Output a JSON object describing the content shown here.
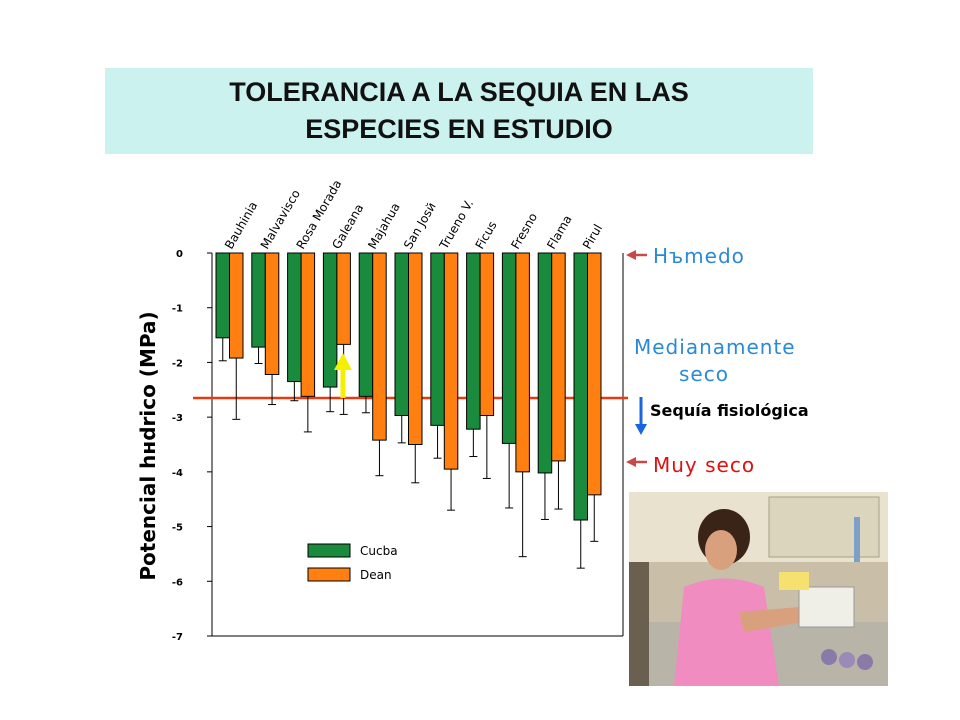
{
  "title": {
    "line1": "TOLERANCIA A LA SEQUIA EN LAS",
    "line2": "ESPECIES EN ESTUDIO"
  },
  "chart_data": {
    "type": "bar",
    "categories": [
      "Bauhinia",
      "Malvavisco",
      "Rosa Morada",
      "Galeana",
      "Majahua",
      "San Josй",
      "Trueno V.",
      "Ficus",
      "Fresno",
      "Flama",
      "Pirul"
    ],
    "series": [
      {
        "name": "Cucba",
        "color": "#1a8a3c",
        "values": [
          -1.55,
          -1.72,
          -2.35,
          -2.45,
          -2.62,
          -2.97,
          -3.15,
          -3.22,
          -3.48,
          -4.02,
          -4.88
        ],
        "errors": [
          0.42,
          0.3,
          0.35,
          0.45,
          0.3,
          0.5,
          0.6,
          0.5,
          1.18,
          0.85,
          0.88
        ]
      },
      {
        "name": "Dean",
        "color": "#ff8010",
        "values": [
          -1.92,
          -2.22,
          -2.62,
          -1.67,
          -3.42,
          -3.5,
          -3.95,
          -2.97,
          -4.0,
          -3.8,
          -4.42
        ],
        "errors": [
          1.12,
          0.55,
          0.65,
          1.28,
          0.65,
          0.7,
          0.75,
          1.15,
          1.55,
          0.88,
          0.85
        ]
      }
    ],
    "ylabel": "Potencial hнdrico (MPa)",
    "ylim": [
      -7,
      0
    ],
    "yticks": [
      "0",
      "-1",
      "-2",
      "-3",
      "-4",
      "-5",
      "-6",
      "-7"
    ],
    "threshold_line": -2.65,
    "legend_position": "bottom-center",
    "annotations": {
      "humedo": "Hъmedo",
      "medianamente_1": "Medianamente",
      "medianamente_2": "seco",
      "sequia": "Sequía fisiológica",
      "muy_seco": "Muy seco"
    },
    "colors": {
      "threshold": "#e83a10",
      "arrow_red": "#c84848",
      "arrow_blue": "#1a64e0",
      "annotation_blue": "#2a8ad8",
      "annotation_red": "#e01010",
      "arrow_yellow": "#f5f000"
    }
  }
}
